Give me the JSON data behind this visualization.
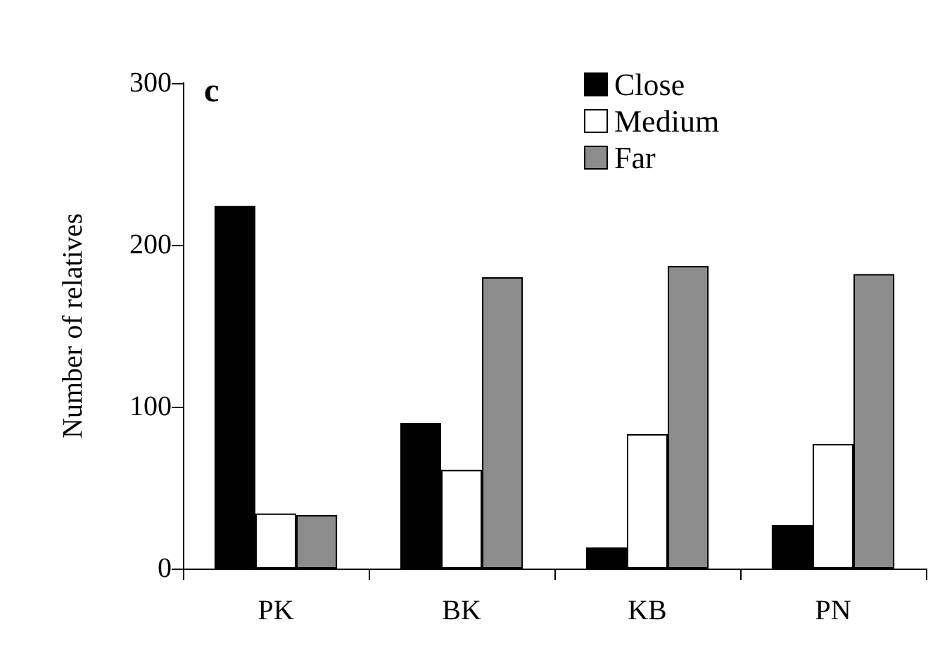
{
  "chart_data": {
    "type": "bar",
    "ylabel": "Number of relatives",
    "annotations": [
      "c"
    ],
    "categories": [
      "PK",
      "BK",
      "KB",
      "PN"
    ],
    "series": [
      {
        "name": "Close",
        "color": "#000000",
        "values": [
          224,
          90,
          13,
          27
        ]
      },
      {
        "name": "Medium",
        "color": "#ffffff",
        "values": [
          34,
          61,
          83,
          77
        ]
      },
      {
        "name": "Far",
        "color": "#8c8c8c",
        "values": [
          33,
          180,
          187,
          182
        ]
      }
    ],
    "ylim": [
      0,
      300
    ],
    "yticks": [
      0,
      100,
      200,
      300
    ],
    "grid": false,
    "legend": "top right"
  }
}
